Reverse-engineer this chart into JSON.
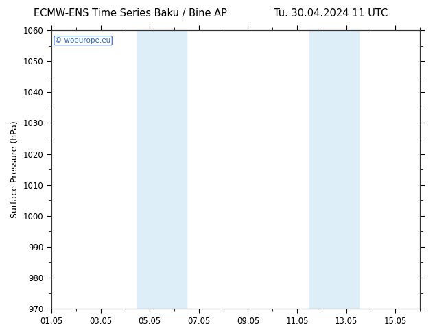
{
  "title_left": "ECMW-ENS Time Series Baku / Bine AP",
  "title_right": "Tu. 30.04.2024 11 UTC",
  "ylabel": "Surface Pressure (hPa)",
  "ylim": [
    970,
    1060
  ],
  "yticks": [
    970,
    980,
    990,
    1000,
    1010,
    1020,
    1030,
    1040,
    1050,
    1060
  ],
  "xtick_labels": [
    "01.05",
    "03.05",
    "05.05",
    "07.05",
    "09.05",
    "11.05",
    "13.05",
    "15.05"
  ],
  "xtick_positions": [
    0,
    2,
    4,
    6,
    8,
    10,
    12,
    14
  ],
  "xlim": [
    0,
    15
  ],
  "shaded_regions": [
    {
      "x_start": 3.5,
      "x_end": 5.5
    },
    {
      "x_start": 10.5,
      "x_end": 12.5
    }
  ],
  "shade_color": "#ddeef8",
  "background_color": "#ffffff",
  "watermark": "© woeurope.eu",
  "watermark_color": "#3366cc",
  "border_color": "#333333",
  "title_fontsize": 10.5,
  "label_fontsize": 9,
  "tick_fontsize": 8.5
}
